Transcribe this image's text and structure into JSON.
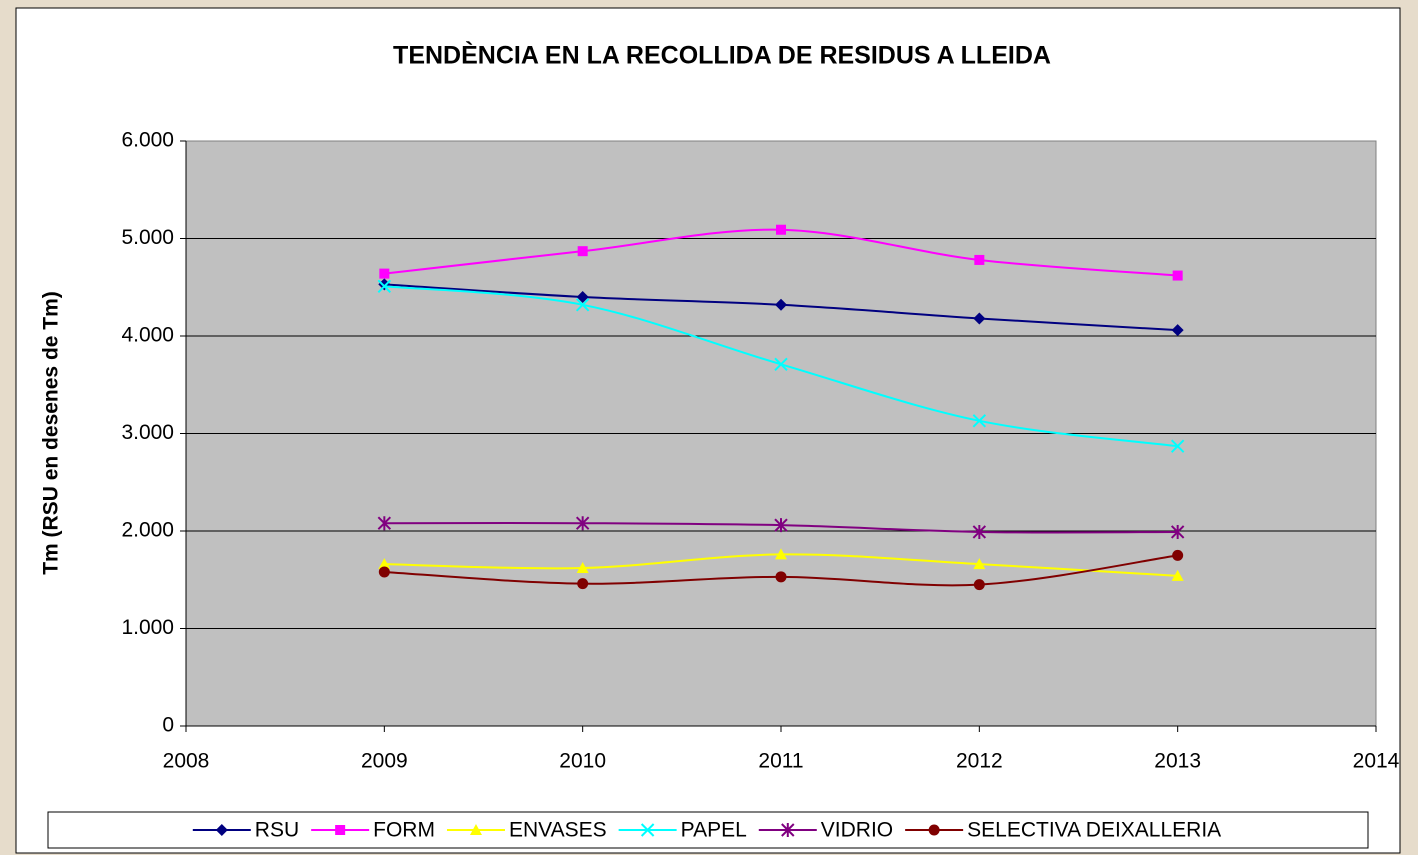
{
  "chart_data": {
    "type": "line",
    "title": "TENDÈNCIA EN LA RECOLLIDA DE RESIDUS A LLEIDA",
    "y_label": "Tm (RSU en desenes de Tm)",
    "x": [
      2009,
      2010,
      2011,
      2012,
      2013
    ],
    "xlim": [
      2008,
      2014
    ],
    "xticks": [
      2008,
      2009,
      2010,
      2011,
      2012,
      2013,
      2014
    ],
    "ylim": [
      0,
      6000
    ],
    "yticks": [
      0,
      {
        "value": 1000,
        "label": "1.000"
      },
      {
        "value": 2000,
        "label": "2.000"
      },
      {
        "value": 3000,
        "label": "3.000"
      },
      {
        "value": 4000,
        "label": "4.000"
      },
      {
        "value": 5000,
        "label": "5.000"
      },
      {
        "value": 6000,
        "label": "6.000"
      }
    ],
    "grid": true,
    "smooth": true,
    "legend": "bottom",
    "series": [
      {
        "name": "RSU",
        "color": "#000080",
        "marker": "diamond",
        "values": [
          4530,
          4400,
          4320,
          4180,
          4060
        ]
      },
      {
        "name": "FORM",
        "color": "#ff00ff",
        "marker": "square",
        "values": [
          4640,
          4870,
          5090,
          4780,
          4620
        ]
      },
      {
        "name": "ENVASES",
        "color": "#ffff00",
        "marker": "triangle",
        "values": [
          1660,
          1620,
          1760,
          1660,
          1540
        ]
      },
      {
        "name": "PAPEL",
        "color": "#00ffff",
        "marker": "x",
        "values": [
          4510,
          4320,
          3710,
          3130,
          2870
        ]
      },
      {
        "name": "VIDRIO",
        "color": "#800080",
        "marker": "star",
        "values": [
          2080,
          2080,
          2060,
          1990,
          1990
        ]
      },
      {
        "name": "SELECTIVA DEIXALLERIA",
        "color": "#800000",
        "marker": "circle",
        "values": [
          1580,
          1460,
          1530,
          1450,
          1750
        ]
      }
    ]
  }
}
